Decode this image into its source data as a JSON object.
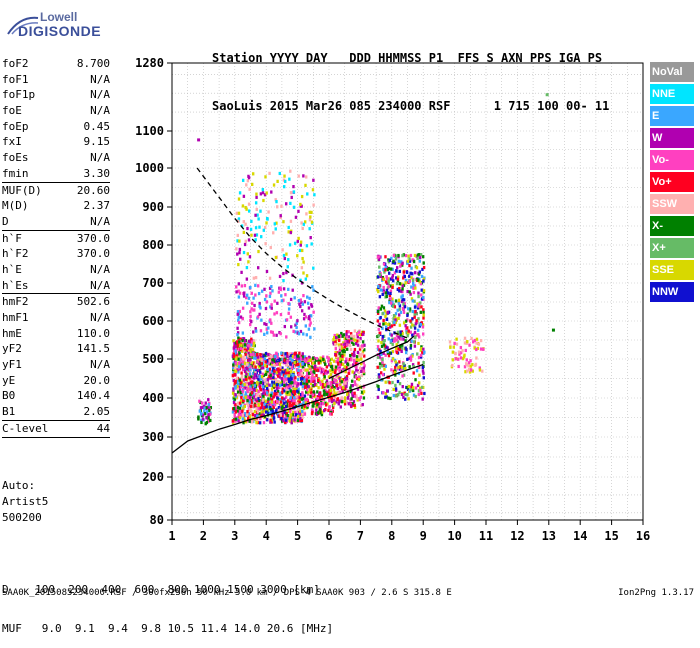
{
  "logo": {
    "line1": "Lowell",
    "line2": "DIGISONDE"
  },
  "header": {
    "line1": "Station YYYY DAY   DDD HHMMSS P1  FFS S AXN PPS IGA PS",
    "line2": "SaoLuis 2015 Mar26 085 234000 RSF      1 715 100 00- 11"
  },
  "params": {
    "group1": [
      {
        "k": "foF2",
        "v": "8.700"
      },
      {
        "k": "foF1",
        "v": "N/A"
      },
      {
        "k": "foF1p",
        "v": "N/A"
      },
      {
        "k": "foE",
        "v": "N/A"
      },
      {
        "k": "foEp",
        "v": "0.45"
      },
      {
        "k": "fxI",
        "v": "9.15"
      },
      {
        "k": "foEs",
        "v": "N/A"
      },
      {
        "k": "fmin",
        "v": "3.30"
      }
    ],
    "group2": [
      {
        "k": "MUF(D)",
        "v": "20.60"
      },
      {
        "k": "M(D)",
        "v": "2.37"
      },
      {
        "k": "D",
        "v": "N/A"
      }
    ],
    "group3": [
      {
        "k": "h`F",
        "v": "370.0"
      },
      {
        "k": "h`F2",
        "v": "370.0"
      },
      {
        "k": "h`E",
        "v": "N/A"
      },
      {
        "k": "h`Es",
        "v": "N/A"
      }
    ],
    "group4": [
      {
        "k": "hmF2",
        "v": "502.6"
      },
      {
        "k": "hmF1",
        "v": "N/A"
      },
      {
        "k": "hmE",
        "v": "110.0"
      },
      {
        "k": "yF2",
        "v": "141.5"
      },
      {
        "k": "yF1",
        "v": "N/A"
      },
      {
        "k": "yE",
        "v": "20.0"
      },
      {
        "k": "B0",
        "v": "140.4"
      },
      {
        "k": "B1",
        "v": "2.05"
      }
    ],
    "group5": [
      {
        "k": "C-level",
        "v": "44"
      }
    ]
  },
  "auto": {
    "line1": "Auto:",
    "line2": "Artist5",
    "line3": "500200"
  },
  "footer": {
    "d_row": "D    100  200  400  600  800 1000 1500 3000 [km]",
    "muf_row": "MUF   9.0  9.1  9.4  9.8 10.5 11.4 14.0 20.6 [MHz]",
    "file": "SAA0K_2015085234000.RSF / 300fx256h 50 kHz 5.0 km / DPS-4 SAA0K 903 / 2.6 S 315.8 E",
    "version": "Ion2Png 1.3.17"
  },
  "legend": [
    {
      "label": "NoVal",
      "color": "#999999"
    },
    {
      "label": "NNE",
      "color": "#00e5ff"
    },
    {
      "label": "E",
      "color": "#3aa7ff"
    },
    {
      "label": "W",
      "color": "#b000b0"
    },
    {
      "label": "Vo-",
      "color": "#ff40c0"
    },
    {
      "label": "Vo+",
      "color": "#ff0020"
    },
    {
      "label": "SSW",
      "color": "#ffb0b0"
    },
    {
      "label": "X-",
      "color": "#008000"
    },
    {
      "label": "X+",
      "color": "#66bb66"
    },
    {
      "label": "SSE",
      "color": "#d8d800"
    },
    {
      "label": "NNW",
      "color": "#1010d0"
    }
  ],
  "chart_data": {
    "type": "scatter",
    "title": "",
    "xlabel": "",
    "ylabel": "",
    "xlim": [
      1,
      16
    ],
    "ylim": [
      80,
      1280
    ],
    "x_ticks": [
      1,
      2,
      3,
      4,
      5,
      6,
      7,
      8,
      9,
      10,
      11,
      12,
      13,
      14,
      15,
      16
    ],
    "y_ticks": [
      80,
      200,
      300,
      400,
      500,
      600,
      700,
      800,
      900,
      1000,
      1100,
      1280
    ],
    "grid": true,
    "legend_position": "right",
    "traces": [
      {
        "style": "solid",
        "points": [
          [
            1,
            260
          ],
          [
            1.5,
            290
          ],
          [
            2,
            305
          ],
          [
            2.5,
            320
          ],
          [
            3,
            332
          ],
          [
            3.5,
            345
          ],
          [
            4,
            355
          ],
          [
            4.5,
            366
          ],
          [
            5,
            378
          ],
          [
            5.5,
            390
          ],
          [
            6,
            402
          ],
          [
            6.5,
            414
          ],
          [
            7,
            428
          ],
          [
            7.5,
            442
          ],
          [
            8,
            458
          ],
          [
            8.5,
            472
          ],
          [
            9,
            486
          ]
        ]
      },
      {
        "style": "solid",
        "points": [
          [
            6,
            450
          ],
          [
            6.5,
            470
          ],
          [
            7,
            490
          ],
          [
            7.5,
            510
          ],
          [
            8,
            528
          ],
          [
            8.5,
            545
          ],
          [
            8.7,
            560
          ]
        ]
      },
      {
        "style": "dashed",
        "points": [
          [
            1.8,
            1000
          ],
          [
            2.5,
            925
          ],
          [
            3,
            870
          ],
          [
            3.5,
            820
          ],
          [
            4,
            778
          ],
          [
            4.5,
            742
          ],
          [
            5,
            710
          ],
          [
            5.5,
            682
          ],
          [
            6,
            656
          ],
          [
            6.5,
            632
          ],
          [
            7,
            610
          ],
          [
            7.5,
            590
          ],
          [
            8,
            572
          ],
          [
            8.5,
            555
          ]
        ]
      }
    ],
    "clusters": [
      {
        "x": [
          1.8,
          2.2
        ],
        "y": [
          330,
          400
        ],
        "colors": [
          "#ff40c0",
          "#b000b0",
          "#008000",
          "#3aa7ff"
        ],
        "n": 50
      },
      {
        "x": [
          2.9,
          3.6
        ],
        "y": [
          340,
          560
        ],
        "colors": [
          "#ff40c0",
          "#ff0020",
          "#b000b0",
          "#d8d800",
          "#ffb0b0",
          "#008000",
          "#3aa7ff"
        ],
        "n": 500
      },
      {
        "x": [
          3.6,
          5.2
        ],
        "y": [
          340,
          520
        ],
        "colors": [
          "#ff40c0",
          "#ff0020",
          "#b000b0",
          "#d8d800",
          "#ffb0b0",
          "#008000",
          "#3aa7ff",
          "#1010d0"
        ],
        "n": 900
      },
      {
        "x": [
          3.0,
          5.5
        ],
        "y": [
          560,
          700
        ],
        "colors": [
          "#b000b0",
          "#ff40c0",
          "#3aa7ff"
        ],
        "n": 160
      },
      {
        "x": [
          3.0,
          5.5
        ],
        "y": [
          700,
          1000
        ],
        "colors": [
          "#d8d800",
          "#ffb0b0",
          "#b000b0",
          "#00e5ff"
        ],
        "n": 180
      },
      {
        "x": [
          5.2,
          6.1
        ],
        "y": [
          360,
          510
        ],
        "colors": [
          "#ff40c0",
          "#ff0020",
          "#b000b0",
          "#d8d800",
          "#008000"
        ],
        "n": 300
      },
      {
        "x": [
          6.1,
          7.1
        ],
        "y": [
          380,
          580
        ],
        "colors": [
          "#ff0020",
          "#ff40c0",
          "#b000b0",
          "#d8d800",
          "#ffb0b0",
          "#008000"
        ],
        "n": 350
      },
      {
        "x": [
          7.5,
          9.0
        ],
        "y": [
          400,
          780
        ],
        "colors": [
          "#ff0020",
          "#ff40c0",
          "#b000b0",
          "#d8d800",
          "#008000",
          "#66bb66",
          "#3aa7ff",
          "#1010d0"
        ],
        "n": 600
      },
      {
        "x": [
          9.8,
          10.9
        ],
        "y": [
          470,
          560
        ],
        "colors": [
          "#d8d800",
          "#ff40c0",
          "#ffb0b0"
        ],
        "n": 70
      }
    ],
    "labeled_points": [
      {
        "x": 12.9,
        "y": 1200,
        "color": "#66bb66"
      },
      {
        "x": 13.1,
        "y": 580,
        "color": "#008000"
      },
      {
        "x": 1.8,
        "y": 1080,
        "color": "#b000b0"
      }
    ]
  }
}
